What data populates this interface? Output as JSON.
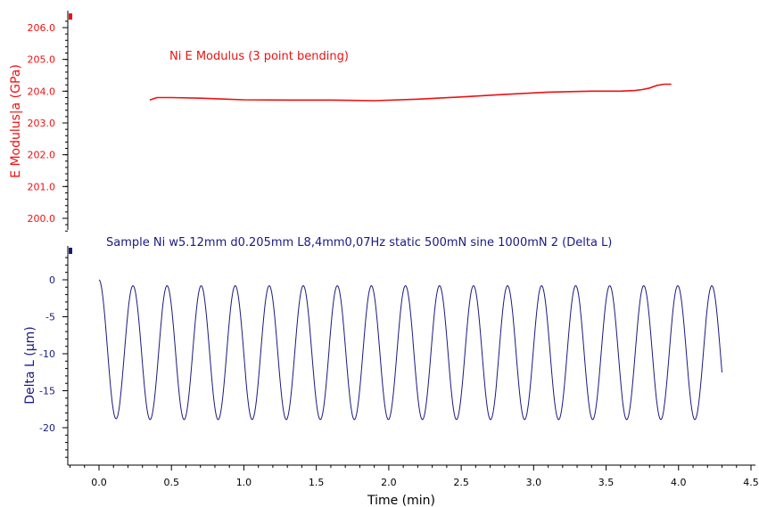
{
  "chart_data": [
    {
      "type": "line",
      "title": "Ni E Modulus (3 point bending)",
      "ylabel": "E Modulus|a (GPa)",
      "ylim": [
        199.5,
        206.3
      ],
      "y_ticks": [
        "200.0",
        "201.0",
        "202.0",
        "203.0",
        "204.0",
        "205.0",
        "206.0"
      ],
      "color": "#ee1111",
      "series": [
        {
          "x": [
            0.35,
            0.4,
            0.5,
            0.7,
            1.0,
            1.3,
            1.6,
            1.9,
            2.2,
            2.5,
            2.8,
            3.1,
            3.4,
            3.6,
            3.7,
            3.75,
            3.8,
            3.85,
            3.9,
            3.95
          ],
          "values": [
            203.72,
            203.8,
            203.8,
            203.78,
            203.73,
            203.72,
            203.72,
            203.7,
            203.75,
            203.82,
            203.9,
            203.97,
            204.0,
            204.0,
            204.02,
            204.05,
            204.1,
            204.18,
            204.22,
            204.22
          ]
        }
      ]
    },
    {
      "type": "line",
      "title": "Sample Ni w5.12mm d0.205mm L8,4mm0,07Hz static 500mN sine 1000mN 2 (Delta L)",
      "ylabel": "Delta L (µm)",
      "ylim": [
        -25,
        4
      ],
      "y_ticks": [
        "0",
        "-5",
        "-10",
        "-15",
        "-20"
      ],
      "color": "#1a1a80",
      "series": [
        {
          "x_start": 0.0,
          "x_end": 4.3,
          "period": 0.235,
          "min_first": -18.8,
          "min_rest": -18.9,
          "max_first": 0.0,
          "max_rest": -0.8
        }
      ]
    }
  ],
  "x_axis": {
    "xlabel": "Time (min)",
    "xlim": [
      -0.2,
      4.55
    ],
    "ticks": [
      "0.0",
      "0.5",
      "1.0",
      "1.5",
      "2.0",
      "2.5",
      "3.0",
      "3.5",
      "4.0",
      "4.5"
    ]
  }
}
